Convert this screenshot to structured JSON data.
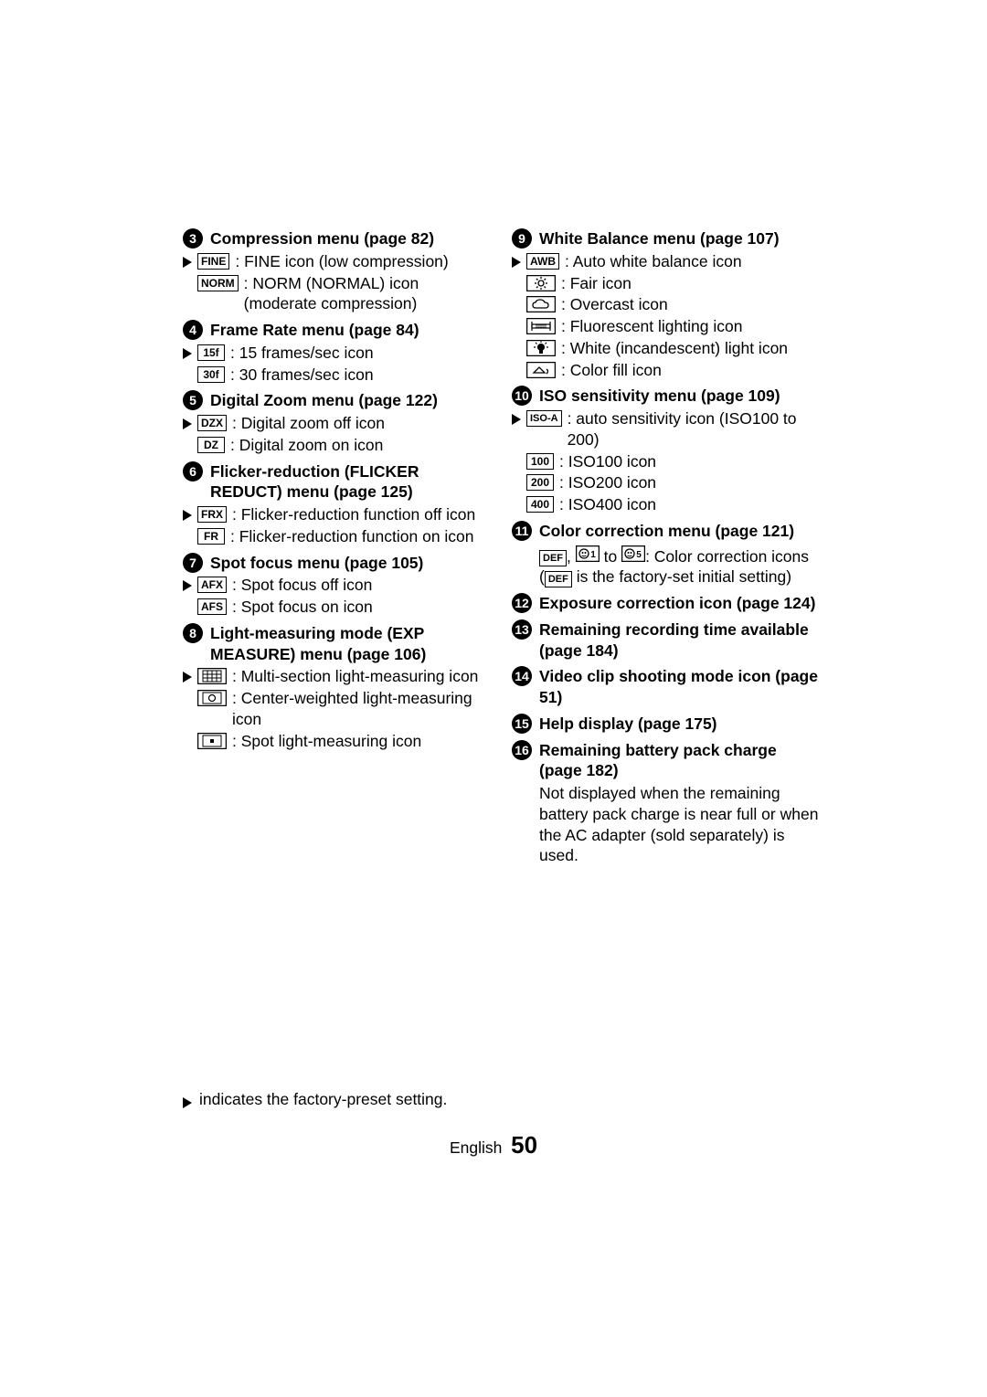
{
  "left": [
    {
      "num": "3",
      "title": "Compression menu (page 82)",
      "items": [
        {
          "preset": true,
          "icon": "FINE",
          "desc": "FINE icon (low compression)"
        },
        {
          "preset": false,
          "icon": "NORM",
          "desc": "NORM (NORMAL) icon (moderate compression)"
        }
      ]
    },
    {
      "num": "4",
      "title": "Frame Rate menu (page 84)",
      "items": [
        {
          "preset": true,
          "icon": "15f",
          "desc": "15 frames/sec icon"
        },
        {
          "preset": false,
          "icon": "30f",
          "desc": "30 frames/sec icon"
        }
      ]
    },
    {
      "num": "5",
      "title": "Digital Zoom menu (page 122)",
      "items": [
        {
          "preset": true,
          "icon": "DZX",
          "iconSvg": "dzx-off",
          "desc": "Digital zoom off icon"
        },
        {
          "preset": false,
          "icon": "DZ",
          "iconSvg": "dzx-on",
          "desc": "Digital zoom on icon"
        }
      ]
    },
    {
      "num": "6",
      "title": "Flicker-reduction (FLICKER REDUCT) menu (page 125)",
      "items": [
        {
          "preset": true,
          "icon": "FRX",
          "iconSvg": "fr-off",
          "desc": "Flicker-reduction function off icon"
        },
        {
          "preset": false,
          "icon": "FR",
          "desc": "Flicker-reduction function on icon"
        }
      ]
    },
    {
      "num": "7",
      "title": "Spot focus menu (page 105)",
      "items": [
        {
          "preset": true,
          "icon": "AFX",
          "iconSvg": "af-off",
          "desc": "Spot focus off icon"
        },
        {
          "preset": false,
          "icon": "AFS",
          "iconSvg": "af-on",
          "desc": "Spot focus on icon"
        }
      ]
    },
    {
      "num": "8",
      "title": "Light-measuring mode (EXP MEASURE) menu (page 106)",
      "items": [
        {
          "preset": true,
          "icon": "MS",
          "iconSvg": "multi",
          "desc": "Multi-section light-measuring icon"
        },
        {
          "preset": false,
          "icon": "CW",
          "iconSvg": "center",
          "desc": "Center-weighted light-measuring icon"
        },
        {
          "preset": false,
          "icon": "SP",
          "iconSvg": "spot",
          "desc": "Spot light-measuring icon"
        }
      ]
    }
  ],
  "right": [
    {
      "num": "9",
      "title": "White Balance menu (page 107)",
      "items": [
        {
          "preset": true,
          "icon": "AWB",
          "desc": "Auto white balance icon"
        },
        {
          "preset": false,
          "icon": "FAIR",
          "iconSvg": "sun",
          "desc": "Fair icon"
        },
        {
          "preset": false,
          "icon": "OVCT",
          "iconSvg": "cloud",
          "desc": "Overcast icon"
        },
        {
          "preset": false,
          "icon": "FLUO",
          "iconSvg": "fluo",
          "desc": "Fluorescent lighting icon"
        },
        {
          "preset": false,
          "icon": "INC",
          "iconSvg": "bulb",
          "desc": "White (incandescent) light icon"
        },
        {
          "preset": false,
          "icon": "FILL",
          "iconSvg": "fill",
          "desc": "Color fill icon"
        }
      ]
    },
    {
      "num": "10",
      "title": "ISO sensitivity menu (page 109)",
      "items": [
        {
          "preset": true,
          "icon": "ISO-A",
          "desc": "auto sensitivity icon (ISO100 to 200)"
        },
        {
          "preset": false,
          "icon": "100",
          "desc": "ISO100 icon"
        },
        {
          "preset": false,
          "icon": "200",
          "desc": "ISO200 icon"
        },
        {
          "preset": false,
          "icon": "400",
          "desc": "ISO400 icon"
        }
      ]
    },
    {
      "num": "11",
      "title": "Color correction menu (page 121)",
      "body": {
        "pre": "",
        "icons": [
          {
            "txt": "DEF"
          },
          {
            "txt": "",
            "svg": "cc1"
          },
          {
            "midtxt": " to "
          },
          {
            "txt": "",
            "svg": "cc5"
          }
        ],
        "after": ": Color correction icons",
        "paren_icon": "DEF",
        "paren_after": " is the factory-set initial setting)"
      }
    },
    {
      "num": "12",
      "title": "Exposure correction icon (page 124)"
    },
    {
      "num": "13",
      "title": "Remaining recording time available (page 184)"
    },
    {
      "num": "14",
      "title": "Video clip shooting mode icon (page 51)"
    },
    {
      "num": "15",
      "title": "Help display (page 175)"
    },
    {
      "num": "16",
      "title": "Remaining battery pack charge (page 182)",
      "bodyText": "Not displayed when the remaining battery pack charge is near full or when the AC adapter (sold separately) is used."
    }
  ],
  "footnote": "indicates the factory-preset setting.",
  "footer": {
    "lang": "English",
    "page": "50"
  }
}
